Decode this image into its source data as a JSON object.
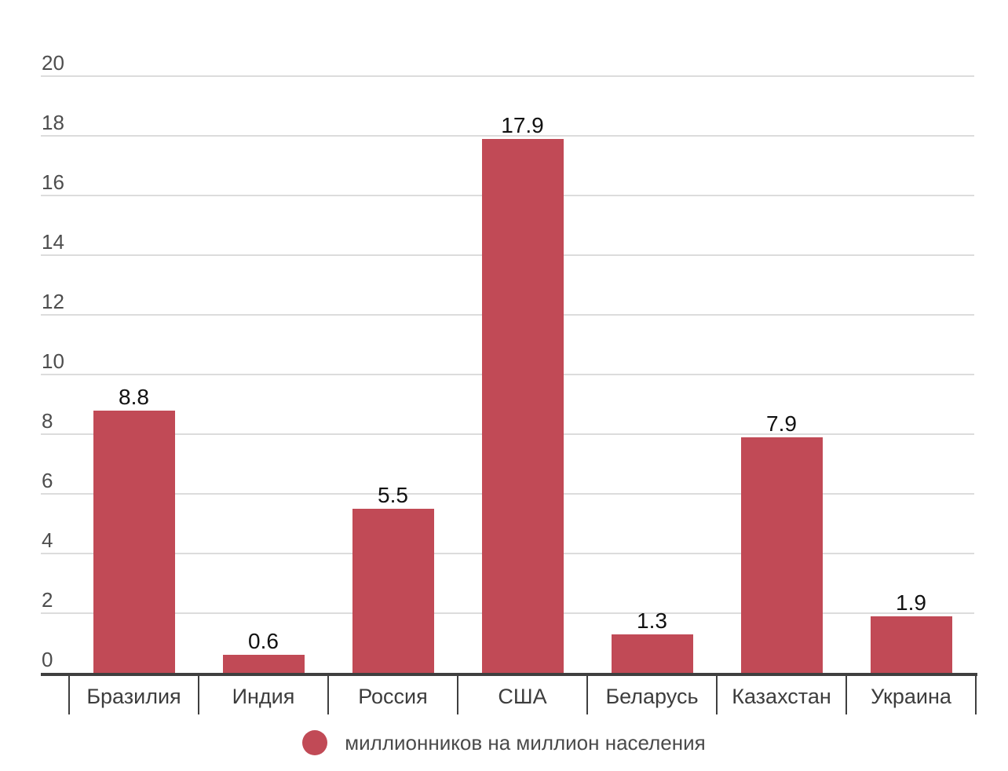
{
  "chart_data": {
    "type": "bar",
    "categories": [
      "Бразилия",
      "Индия",
      "Россия",
      "США",
      "Беларусь",
      "Казахстан",
      "Украина"
    ],
    "values": [
      8.8,
      0.6,
      5.5,
      17.9,
      1.3,
      7.9,
      1.9
    ],
    "value_labels": [
      "8.8",
      "0.6",
      "5.5",
      "17.9",
      "1.3",
      "7.9",
      "1.9"
    ],
    "title": "",
    "xlabel": "",
    "ylabel": "",
    "ylim": [
      0,
      20
    ],
    "yticks": [
      0,
      2,
      4,
      6,
      8,
      10,
      12,
      14,
      16,
      18,
      20
    ],
    "grid": "horizontal",
    "legend": {
      "position": "bottom-center",
      "items": [
        {
          "label": "миллионников на миллион населения",
          "color": "#c14a56"
        }
      ]
    }
  },
  "colors": {
    "bar": "#c14a56",
    "axis": "#3f3f3f",
    "gridline": "#dcdcdc",
    "value_label": "#111111",
    "ytick_label": "#4d4d4d",
    "category_label": "#3d3d3d",
    "legend_text": "#4a4a4a",
    "background": "#ffffff"
  }
}
